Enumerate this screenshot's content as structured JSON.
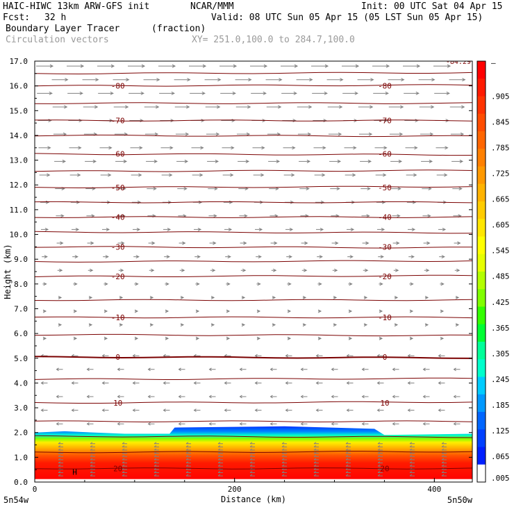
{
  "header": {
    "model": "HAIC-HIWC 13km ARW-GFS init",
    "org": "NCAR/MMM",
    "init": "Init: 00 UTC Sat 04 Apr 15",
    "fcst_label": "Fcst:",
    "fcst_value": "32 h",
    "valid": "Valid: 08 UTC Sun 05 Apr 15 (05 LST Sun 05 Apr 15)",
    "field": "Boundary Layer Tracer",
    "units": "(fraction)",
    "vectors": "Circulation vectors",
    "xy": "XY= 251.0,100.0 to 284.7,100.0"
  },
  "chart_data": {
    "type": "heatmap",
    "title": "Boundary Layer Tracer",
    "xlabel": "Distance (km)",
    "ylabel": "Height (km)",
    "xlim": [
      0,
      438
    ],
    "ylim": [
      0,
      17
    ],
    "x_ticks": [
      "0",
      "200",
      "400"
    ],
    "y_ticks": [
      "0.0",
      "1.0",
      "2.0",
      "3.0",
      "4.0",
      "5.0",
      "6.0",
      "7.0",
      "8.0",
      "9.0",
      "10.0",
      "11.0",
      "12.0",
      "13.0",
      "14.0",
      "15.0",
      "16.0",
      "17.0"
    ],
    "endpoints": {
      "left": "5n54w",
      "right": "5n50w"
    },
    "colorbar": {
      "labels": [
        ".905",
        ".845",
        ".785",
        ".725",
        ".665",
        ".605",
        ".545",
        ".485",
        ".425",
        ".365",
        ".305",
        ".245",
        ".185",
        ".125",
        ".065",
        ".005"
      ],
      "top_label": "–",
      "colors": [
        "#ff0000",
        "#ff1a00",
        "#ff3300",
        "#ff4d00",
        "#ff6600",
        "#ff8000",
        "#ff9900",
        "#ffb300",
        "#ffcc00",
        "#ffe600",
        "#ffff00",
        "#e6ff00",
        "#b3ff00",
        "#80ff00",
        "#33ff00",
        "#00ff33",
        "#00ff99",
        "#00ffcc",
        "#00ccff",
        "#0099ff",
        "#0066ff",
        "#0040ff",
        "#0020ff",
        "#ffffff"
      ]
    },
    "temperature_contours": {
      "color": "#7a0000",
      "levels": [
        {
          "value": -80,
          "label": "-80",
          "height_km": 16.0
        },
        {
          "value": -70,
          "label": "-70",
          "height_km": 14.6
        },
        {
          "value": -60,
          "label": "-60",
          "height_km": 13.25
        },
        {
          "value": -50,
          "label": "-50",
          "height_km": 11.9
        },
        {
          "value": -40,
          "label": "-40",
          "height_km": 10.7
        },
        {
          "value": -30,
          "label": "-30",
          "height_km": 9.5
        },
        {
          "value": -20,
          "label": "-20",
          "height_km": 8.3
        },
        {
          "value": -10,
          "label": "-10",
          "height_km": 6.65
        },
        {
          "value": 0,
          "label": "0",
          "height_km": 5.05
        },
        {
          "value": 10,
          "label": "10",
          "height_km": 3.2
        },
        {
          "value": 20,
          "label": "20",
          "height_km": 0.55
        }
      ],
      "unlabeled_heights_km": [
        16.5,
        15.3,
        14.0,
        12.55,
        11.3,
        10.1,
        8.9,
        7.35,
        5.95,
        4.15,
        2.45,
        1.85,
        1.2
      ],
      "max_label": "-84.29"
    },
    "tracer_layer": {
      "top_height_km": 2.0,
      "high_fraction_below_km": 1.75,
      "distance_km": [
        0,
        30,
        90,
        135,
        140,
        250,
        340,
        350,
        440
      ],
      "top_km": [
        2.0,
        2.05,
        1.95,
        1.95,
        2.2,
        2.25,
        2.15,
        1.9,
        1.95
      ]
    },
    "vectors": {
      "color": "#808080",
      "upper_direction": "west-to-east",
      "lower_direction": "east-to-west"
    },
    "annotation": "H"
  }
}
